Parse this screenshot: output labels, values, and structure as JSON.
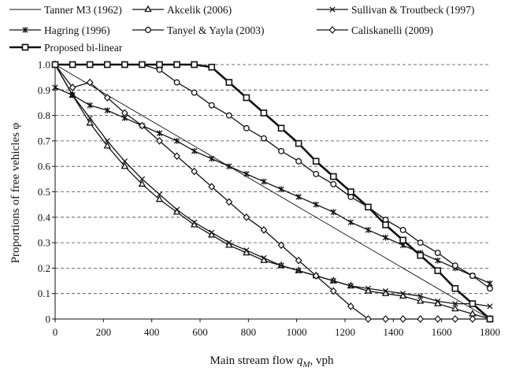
{
  "chart_data": {
    "type": "line",
    "xlabel_prefix": "Main stream flow ",
    "xlabel_var": "q",
    "xlabel_sub": "M",
    "xlabel_suffix": ", vph",
    "ylabel": "Proportions of free vehicles φ",
    "xlim": [
      0,
      1800
    ],
    "ylim": [
      0,
      1.0
    ],
    "x_ticks": [
      "0",
      "200",
      "400",
      "600",
      "800",
      "1000",
      "1200",
      "1400",
      "1600",
      "1800"
    ],
    "y_ticks": [
      "0",
      "0.1",
      "0.2",
      "0.3",
      "0.4",
      "0.5",
      "0.6",
      "0.7",
      "0.8",
      "0.9",
      "1.0"
    ],
    "grid": "horizontal-dashed",
    "legend_position": "top",
    "series": [
      {
        "name": "Tanner M3 (1962)",
        "marker": "none",
        "weight": "thin",
        "x": [
          0,
          1800
        ],
        "y": [
          1.0,
          0.0
        ]
      },
      {
        "name": "Akcelik (2006)",
        "marker": "triangle",
        "weight": "normal",
        "x": [
          0,
          72,
          144,
          216,
          288,
          360,
          432,
          504,
          576,
          648,
          720,
          792,
          864,
          936,
          1008,
          1080,
          1152,
          1224,
          1296,
          1368,
          1440,
          1512,
          1584,
          1656,
          1728,
          1800
        ],
        "y": [
          1.0,
          0.88,
          0.77,
          0.68,
          0.6,
          0.53,
          0.47,
          0.42,
          0.37,
          0.33,
          0.29,
          0.26,
          0.23,
          0.21,
          0.19,
          0.17,
          0.15,
          0.13,
          0.11,
          0.1,
          0.09,
          0.07,
          0.06,
          0.04,
          0.02,
          0.0
        ]
      },
      {
        "name": "Sullivan & Troutbeck (1997)",
        "marker": "x",
        "weight": "normal",
        "x": [
          0,
          72,
          144,
          216,
          288,
          360,
          432,
          504,
          576,
          648,
          720,
          792,
          864,
          936,
          1008,
          1080,
          1152,
          1224,
          1296,
          1368,
          1440,
          1512,
          1584,
          1656,
          1728,
          1800
        ],
        "y": [
          1.0,
          0.88,
          0.79,
          0.7,
          0.62,
          0.55,
          0.49,
          0.43,
          0.38,
          0.34,
          0.3,
          0.27,
          0.24,
          0.21,
          0.19,
          0.17,
          0.15,
          0.13,
          0.12,
          0.11,
          0.1,
          0.09,
          0.07,
          0.06,
          0.06,
          0.05
        ]
      },
      {
        "name": "Hagring (1996)",
        "marker": "star",
        "weight": "normal",
        "x": [
          0,
          72,
          144,
          216,
          288,
          360,
          432,
          504,
          576,
          648,
          720,
          792,
          864,
          936,
          1008,
          1080,
          1152,
          1224,
          1296,
          1368,
          1440,
          1512,
          1584,
          1656,
          1728,
          1800
        ],
        "y": [
          0.91,
          0.88,
          0.84,
          0.82,
          0.79,
          0.76,
          0.73,
          0.7,
          0.66,
          0.63,
          0.6,
          0.57,
          0.54,
          0.51,
          0.48,
          0.45,
          0.42,
          0.38,
          0.35,
          0.32,
          0.29,
          0.26,
          0.23,
          0.2,
          0.17,
          0.14
        ]
      },
      {
        "name": "Tanyel & Yayla (2003)",
        "marker": "circle",
        "weight": "normal",
        "x": [
          0,
          72,
          144,
          216,
          288,
          360,
          432,
          504,
          576,
          648,
          720,
          792,
          864,
          936,
          1008,
          1080,
          1152,
          1224,
          1296,
          1368,
          1440,
          1512,
          1584,
          1656,
          1728,
          1800
        ],
        "y": [
          1.0,
          1.0,
          1.0,
          1.0,
          1.0,
          1.0,
          0.98,
          0.93,
          0.89,
          0.84,
          0.8,
          0.75,
          0.71,
          0.66,
          0.62,
          0.57,
          0.53,
          0.48,
          0.44,
          0.39,
          0.35,
          0.3,
          0.26,
          0.21,
          0.17,
          0.12
        ]
      },
      {
        "name": "Caliskanelli (2009)",
        "marker": "diamond",
        "weight": "normal",
        "x": [
          0,
          72,
          144,
          216,
          288,
          360,
          432,
          504,
          576,
          648,
          720,
          792,
          864,
          936,
          1008,
          1080,
          1152,
          1224,
          1296,
          1368,
          1440,
          1512,
          1584,
          1656,
          1728,
          1800
        ],
        "y": [
          1.0,
          0.91,
          0.93,
          0.87,
          0.81,
          0.76,
          0.7,
          0.64,
          0.58,
          0.52,
          0.46,
          0.4,
          0.35,
          0.29,
          0.23,
          0.17,
          0.11,
          0.05,
          0.0,
          0.0,
          0.0,
          0.0,
          0.0,
          0.0,
          0.0,
          0.0
        ]
      },
      {
        "name": "Proposed bi-linear",
        "marker": "square",
        "weight": "bold",
        "x": [
          0,
          72,
          144,
          216,
          288,
          360,
          432,
          504,
          576,
          648,
          720,
          792,
          864,
          936,
          1008,
          1080,
          1152,
          1224,
          1296,
          1368,
          1440,
          1512,
          1584,
          1656,
          1728,
          1800
        ],
        "y": [
          1.0,
          1.0,
          1.0,
          1.0,
          1.0,
          1.0,
          1.0,
          1.0,
          1.0,
          0.99,
          0.93,
          0.87,
          0.81,
          0.75,
          0.69,
          0.62,
          0.56,
          0.5,
          0.44,
          0.37,
          0.31,
          0.25,
          0.19,
          0.12,
          0.06,
          0.0
        ]
      }
    ]
  }
}
